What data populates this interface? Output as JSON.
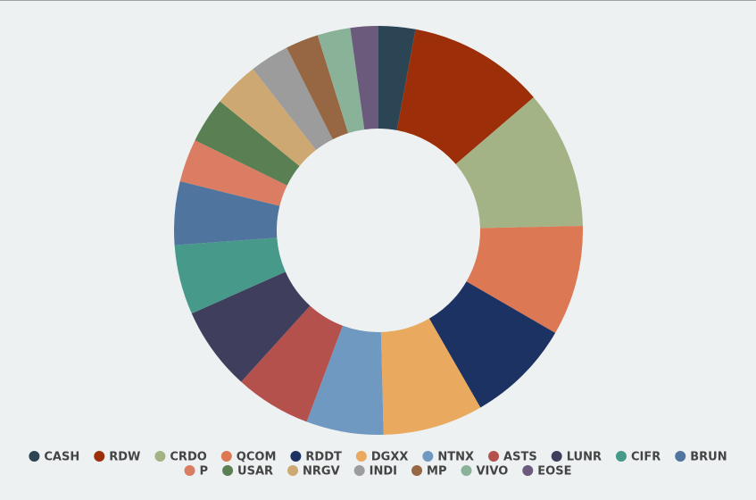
{
  "chart_data": {
    "type": "donut",
    "categories": [
      "CASH",
      "RDW",
      "CRDO",
      "QCOM",
      "RDDT",
      "DGXX",
      "NTNX",
      "ASTS",
      "LUNR",
      "CIFR",
      "BRUN",
      "P",
      "USAR",
      "NRGV",
      "INDI",
      "MP",
      "VIVO",
      "EOSE"
    ],
    "values": [
      2.9,
      10.8,
      10.9,
      8.7,
      8.3,
      7.9,
      6.1,
      6.0,
      6.6,
      5.5,
      5.0,
      3.4,
      3.6,
      3.6,
      3.1,
      2.6,
      2.6,
      2.2
    ],
    "colors": [
      "#2b4555",
      "#9c2f0a",
      "#a3b386",
      "#dc7853",
      "#1c3263",
      "#e9a95f",
      "#7099c1",
      "#b4514d",
      "#3f3e5d",
      "#47998a",
      "#4f749e",
      "#da7d62",
      "#5a7f52",
      "#cea872",
      "#9c9c9c",
      "#976744",
      "#89b299",
      "#6c5a7d"
    ],
    "legend": "bottom"
  }
}
